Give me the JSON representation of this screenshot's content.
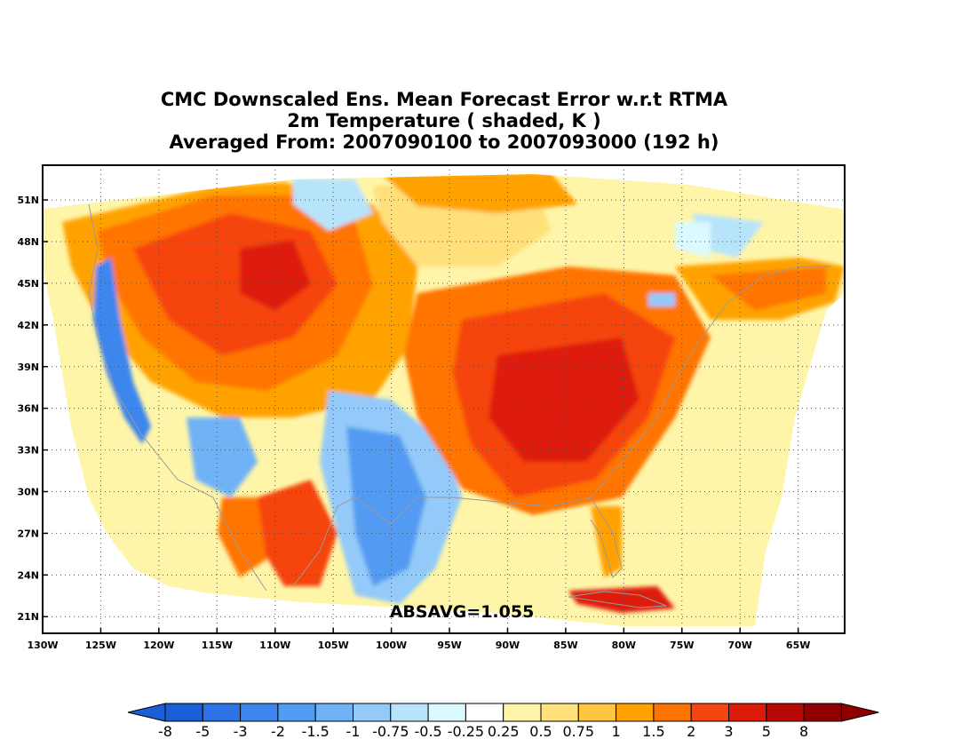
{
  "titles": {
    "line1": "CMC Downscaled Ens. Mean Forecast Error w.r.t RTMA",
    "line2": "2m Temperature ( shaded, K )",
    "line3": "Averaged From: 2007090100 to 2007093000 (192 h)"
  },
  "annotation": "ABSAVG=1.055",
  "axes": {
    "lat_labels": [
      "51N",
      "48N",
      "45N",
      "42N",
      "39N",
      "36N",
      "33N",
      "30N",
      "27N",
      "24N",
      "21N"
    ],
    "lat_values": [
      51,
      48,
      45,
      42,
      39,
      36,
      33,
      30,
      27,
      24,
      21
    ],
    "lon_labels": [
      "130W",
      "125W",
      "120W",
      "115W",
      "110W",
      "105W",
      "100W",
      "95W",
      "90W",
      "85W",
      "80W",
      "75W",
      "70W",
      "65W"
    ],
    "lon_values": [
      -130,
      -125,
      -120,
      -115,
      -110,
      -105,
      -100,
      -95,
      -90,
      -85,
      -80,
      -75,
      -70,
      -65
    ],
    "lon_range": [
      -130,
      -61
    ],
    "lat_range": [
      19.8,
      53.5
    ],
    "grid": "dotted"
  },
  "colorbar": {
    "labels": [
      "-8",
      "-5",
      "-3",
      "-2",
      "-1.5",
      "-1",
      "-0.75",
      "-0.5",
      "-0.25",
      "0.25",
      "0.5",
      "0.75",
      "1",
      "1.5",
      "2",
      "3",
      "5",
      "8"
    ],
    "colors": [
      "#1a5fd8",
      "#2a72e6",
      "#3d86ee",
      "#529bf2",
      "#6fb2f6",
      "#93caf9",
      "#b8e4fb",
      "#dafaff",
      "#ffffff",
      "#fff5a8",
      "#ffe07a",
      "#ffc541",
      "#ffa200",
      "#ff7400",
      "#f54511",
      "#de1b0a",
      "#b80806",
      "#900000"
    ]
  },
  "map_colors": {
    "ocean": "#ffffff",
    "domain_bg": "#fff5a8",
    "coast": "#9a9a9a"
  }
}
